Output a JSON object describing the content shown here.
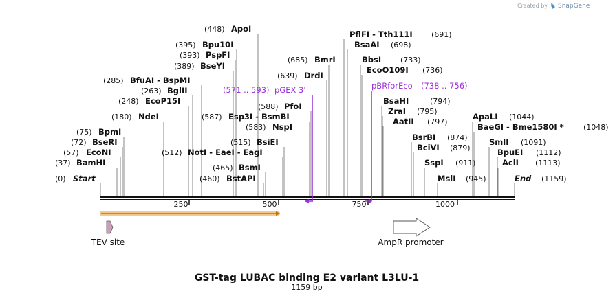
{
  "brand": {
    "prefix": "Created by",
    "name": "SnapGene"
  },
  "map": {
    "title": "GST-tag LUBAC binding E2 variant L3LU-1",
    "length_label": "1159 bp",
    "ticks": [
      "250",
      "500",
      "750",
      "1000"
    ]
  },
  "sites": [
    {
      "name": "Start",
      "pos": "(0)"
    },
    {
      "name": "BamHI",
      "pos": "(37)"
    },
    {
      "name": "EcoNI",
      "pos": "(57)"
    },
    {
      "name": "BseRI",
      "pos": "(72)"
    },
    {
      "name": "BpmI",
      "pos": "(75)"
    },
    {
      "name": "NdeI",
      "pos": "(180)"
    },
    {
      "name": "EcoP15I",
      "pos": "(248)"
    },
    {
      "name": "BglII",
      "pos": "(263)"
    },
    {
      "name": "BfuAI  -  BspMI",
      "pos": "(285)"
    },
    {
      "name": "BseYI",
      "pos": "(389)"
    },
    {
      "name": "PspFI",
      "pos": "(393)"
    },
    {
      "name": "Bpu10I",
      "pos": "(395)"
    },
    {
      "name": "ApoI",
      "pos": "(448)"
    },
    {
      "name": "BstAPI",
      "pos": "(460)"
    },
    {
      "name": "BsmI",
      "pos": "(465)"
    },
    {
      "name": "NotI  -  EaeI  -  EagI",
      "pos": "(512)"
    },
    {
      "name": "BsiEI",
      "pos": "(515)"
    },
    {
      "name": "NspI",
      "pos": "(583)"
    },
    {
      "name": "Esp3I  -  BsmBI",
      "pos": "(587)"
    },
    {
      "name": "PfoI",
      "pos": "(588)"
    },
    {
      "name": "DrdI",
      "pos": "(639)"
    },
    {
      "name": "BmrI",
      "pos": "(685)"
    },
    {
      "name": "PflFI  -  Tth111I",
      "pos": "(691)"
    },
    {
      "name": "BsaAI",
      "pos": "(698)"
    },
    {
      "name": "BbsI",
      "pos": "(733)"
    },
    {
      "name": "EcoO109I",
      "pos": "(736)"
    },
    {
      "name": "BsaHI",
      "pos": "(794)"
    },
    {
      "name": "ZraI",
      "pos": "(795)"
    },
    {
      "name": "AatII",
      "pos": "(797)"
    },
    {
      "name": "BsrBI",
      "pos": "(874)"
    },
    {
      "name": "BciVI",
      "pos": "(879)"
    },
    {
      "name": "SspI",
      "pos": "(911)"
    },
    {
      "name": "MslI",
      "pos": "(945)"
    },
    {
      "name": "ApaLI",
      "pos": "(1044)"
    },
    {
      "name": "BaeGI  -  Bme1580I *",
      "pos": "(1048)"
    },
    {
      "name": "SmlI",
      "pos": "(1091)"
    },
    {
      "name": "BpuEI",
      "pos": "(1112)"
    },
    {
      "name": "AclI",
      "pos": "(1113)"
    },
    {
      "name": "End",
      "pos": "(1159)"
    }
  ],
  "primers": [
    {
      "label": "pGEX 3'",
      "range": "(571 .. 593)",
      "color": "#9b30d9"
    },
    {
      "label": "pBRforEco",
      "range": "(738 .. 756)",
      "color": "#9b30d9"
    }
  ],
  "features": [
    {
      "label": "TEV site",
      "color": "#c9a0b8"
    },
    {
      "label": "AmpR promoter",
      "color": "#ffffff"
    }
  ],
  "colors": {
    "orf": "#f3c98c",
    "orf_line": "#e08a1a",
    "primer": "#9b30d9"
  }
}
